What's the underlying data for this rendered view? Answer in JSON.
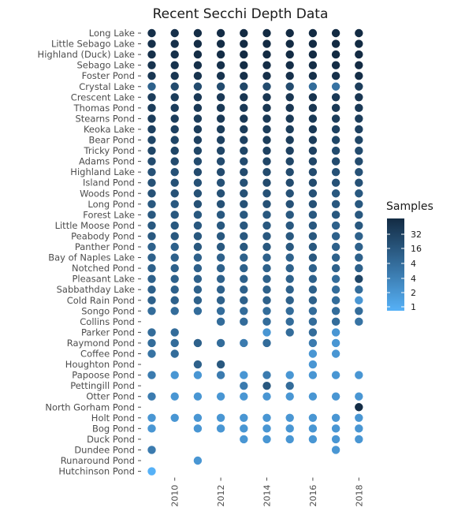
{
  "chart_data": {
    "type": "scatter",
    "title": "Recent Secchi Depth Data",
    "xlabel": "",
    "ylabel": "",
    "x_ticks": [
      "2010",
      "2012",
      "2014",
      "2016",
      "2018"
    ],
    "years": [
      2009,
      2010,
      2011,
      2012,
      2013,
      2014,
      2015,
      2016,
      2017,
      2018
    ],
    "legend": {
      "title": "Samples",
      "position": "right",
      "ticks": [
        "32",
        "16",
        "4",
        "4",
        "2",
        "1"
      ],
      "colors": {
        "low": "#56B1F7",
        "high": "#132B43"
      }
    },
    "lakes": [
      {
        "name": "Long Lake",
        "samples": [
          28,
          28,
          30,
          30,
          32,
          32,
          32,
          32,
          32,
          32
        ]
      },
      {
        "name": "Little Sebago Lake",
        "samples": [
          28,
          28,
          30,
          30,
          32,
          32,
          32,
          32,
          32,
          32
        ]
      },
      {
        "name": "Highland (Duck) Lake",
        "samples": [
          28,
          28,
          30,
          30,
          32,
          32,
          32,
          32,
          32,
          34
        ]
      },
      {
        "name": "Sebago Lake",
        "samples": [
          26,
          26,
          28,
          28,
          30,
          30,
          30,
          30,
          30,
          32
        ]
      },
      {
        "name": "Foster Pond",
        "samples": [
          24,
          24,
          26,
          26,
          28,
          28,
          28,
          28,
          28,
          30
        ]
      },
      {
        "name": "Crystal Lake",
        "samples": [
          8,
          14,
          14,
          14,
          16,
          14,
          14,
          6,
          5,
          20
        ]
      },
      {
        "name": "Crescent Lake",
        "samples": [
          20,
          20,
          22,
          22,
          24,
          24,
          24,
          26,
          22,
          24
        ]
      },
      {
        "name": "Thomas Pond",
        "samples": [
          20,
          20,
          22,
          22,
          22,
          24,
          24,
          24,
          22,
          22
        ]
      },
      {
        "name": "Stearns Pond",
        "samples": [
          20,
          20,
          20,
          22,
          22,
          22,
          22,
          22,
          20,
          20
        ]
      },
      {
        "name": "Keoka Lake",
        "samples": [
          18,
          18,
          20,
          20,
          20,
          20,
          20,
          22,
          18,
          18
        ]
      },
      {
        "name": "Bear Pond",
        "samples": [
          16,
          16,
          18,
          18,
          18,
          20,
          20,
          20,
          16,
          16
        ]
      },
      {
        "name": "Tricky Pond",
        "samples": [
          16,
          16,
          16,
          16,
          16,
          18,
          18,
          18,
          14,
          14
        ]
      },
      {
        "name": "Adams Pond",
        "samples": [
          14,
          14,
          14,
          14,
          14,
          16,
          16,
          16,
          14,
          14
        ]
      },
      {
        "name": "Highland Lake",
        "samples": [
          12,
          12,
          14,
          14,
          14,
          14,
          14,
          14,
          12,
          12
        ]
      },
      {
        "name": "Island Pond",
        "samples": [
          12,
          12,
          12,
          12,
          12,
          14,
          14,
          14,
          12,
          12
        ]
      },
      {
        "name": "Woods Pond",
        "samples": [
          12,
          12,
          12,
          12,
          12,
          12,
          12,
          12,
          10,
          10
        ]
      },
      {
        "name": "Long Pond",
        "samples": [
          10,
          10,
          12,
          12,
          12,
          12,
          12,
          12,
          10,
          10
        ]
      },
      {
        "name": "Forest Lake",
        "samples": [
          10,
          10,
          10,
          10,
          10,
          10,
          10,
          10,
          10,
          10
        ]
      },
      {
        "name": "Little Moose Pond",
        "samples": [
          10,
          10,
          10,
          10,
          10,
          10,
          10,
          10,
          8,
          10
        ]
      },
      {
        "name": "Peabody Pond",
        "samples": [
          10,
          10,
          10,
          10,
          10,
          10,
          10,
          10,
          8,
          8
        ]
      },
      {
        "name": "Panther Pond",
        "samples": [
          8,
          8,
          10,
          10,
          10,
          10,
          10,
          10,
          8,
          8
        ]
      },
      {
        "name": "Bay of Naples Lake",
        "samples": [
          8,
          8,
          8,
          8,
          8,
          8,
          8,
          10,
          8,
          8
        ]
      },
      {
        "name": "Notched Pond",
        "samples": [
          8,
          8,
          8,
          8,
          8,
          8,
          8,
          8,
          8,
          8
        ]
      },
      {
        "name": "Pleasant Lake",
        "samples": [
          8,
          8,
          8,
          8,
          8,
          8,
          8,
          8,
          6,
          16
        ]
      },
      {
        "name": "Sabbathday Lake",
        "samples": [
          8,
          8,
          8,
          8,
          8,
          8,
          8,
          8,
          6,
          6
        ]
      },
      {
        "name": "Cold Rain Pond",
        "samples": [
          8,
          8,
          8,
          8,
          8,
          8,
          8,
          8,
          6,
          2
        ]
      },
      {
        "name": "Songo Pond",
        "samples": [
          6,
          6,
          6,
          6,
          6,
          6,
          6,
          6,
          6,
          6
        ]
      },
      {
        "name": "Collins Pond",
        "samples": [
          null,
          null,
          null,
          6,
          6,
          6,
          6,
          6,
          6,
          5
        ]
      },
      {
        "name": "Parker Pond",
        "samples": [
          6,
          6,
          null,
          null,
          null,
          2,
          6,
          6,
          2,
          null
        ]
      },
      {
        "name": "Raymond Pond",
        "samples": [
          6,
          6,
          8,
          6,
          4,
          6,
          null,
          4,
          2,
          null
        ]
      },
      {
        "name": "Coffee Pond",
        "samples": [
          5,
          6,
          null,
          null,
          null,
          null,
          null,
          2,
          2,
          null
        ]
      },
      {
        "name": "Houghton Pond",
        "samples": [
          null,
          null,
          8,
          10,
          null,
          null,
          null,
          2,
          null,
          null
        ]
      },
      {
        "name": "Papoose Pond",
        "samples": [
          4,
          2,
          2,
          4,
          2,
          4,
          2,
          2,
          2,
          2
        ]
      },
      {
        "name": "Pettingill Pond",
        "samples": [
          null,
          null,
          null,
          null,
          4,
          10,
          6,
          null,
          null,
          null
        ]
      },
      {
        "name": "Otter Pond",
        "samples": [
          4,
          2,
          2,
          2,
          2,
          2,
          2,
          2,
          2,
          2
        ]
      },
      {
        "name": "North Gorham Pond",
        "samples": [
          null,
          null,
          null,
          null,
          null,
          null,
          null,
          null,
          null,
          30
        ]
      },
      {
        "name": "Holt Pond",
        "samples": [
          2,
          2,
          2,
          2,
          2,
          2,
          2,
          2,
          2,
          2
        ]
      },
      {
        "name": "Bog Pond",
        "samples": [
          2,
          null,
          2,
          2,
          2,
          2,
          2,
          2,
          2,
          2
        ]
      },
      {
        "name": "Duck Pond",
        "samples": [
          null,
          null,
          null,
          null,
          2,
          2,
          2,
          2,
          2,
          2
        ]
      },
      {
        "name": "Dundee Pond",
        "samples": [
          4,
          null,
          null,
          null,
          null,
          null,
          null,
          null,
          2,
          null
        ]
      },
      {
        "name": "Runaround Pond",
        "samples": [
          null,
          null,
          2,
          null,
          null,
          null,
          null,
          null,
          null,
          null
        ]
      },
      {
        "name": "Hutchinson Pond",
        "samples": [
          1,
          null,
          null,
          null,
          null,
          null,
          null,
          null,
          null,
          null
        ]
      }
    ]
  }
}
